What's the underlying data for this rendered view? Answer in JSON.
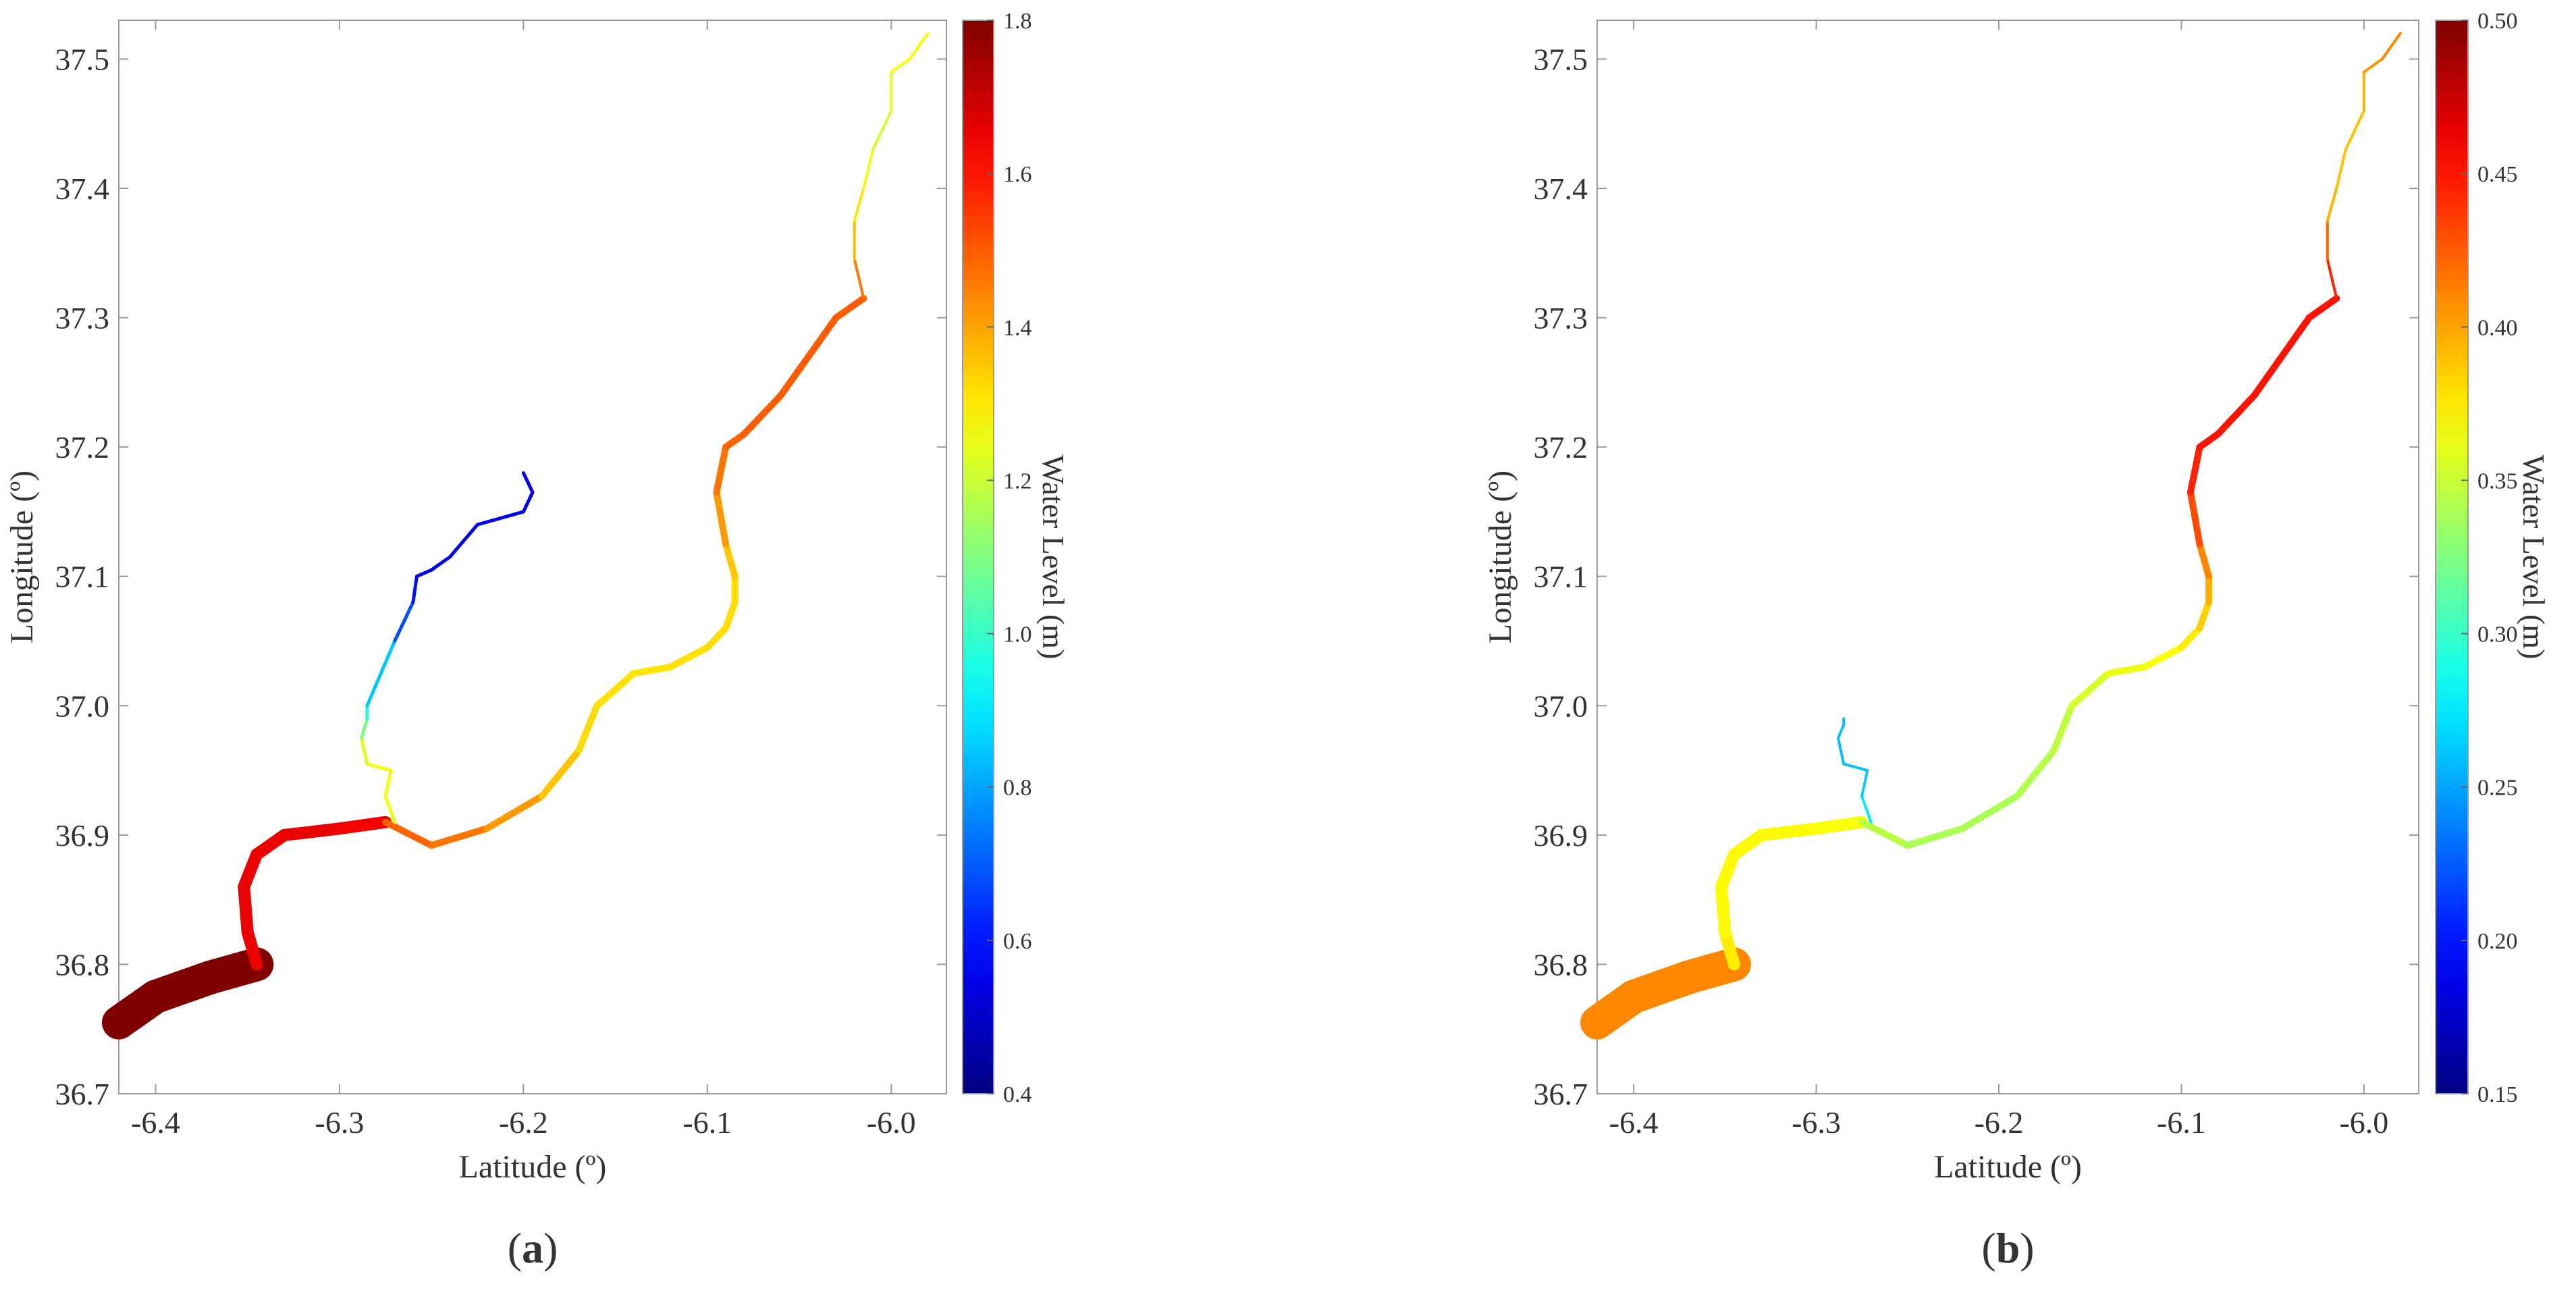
{
  "chart_data": [
    {
      "type": "map",
      "panel_label": "a",
      "xlabel": "Latitude (º)",
      "ylabel": "Longitude (º)",
      "xlim": [
        -6.42,
        -5.97
      ],
      "ylim": [
        36.7,
        37.53
      ],
      "x_ticks": [
        "-6.4",
        "-6.3",
        "-6.2",
        "-6.1",
        "-6.0"
      ],
      "y_ticks": [
        "36.7",
        "36.8",
        "36.9",
        "37.0",
        "37.1",
        "37.2",
        "37.3",
        "37.4",
        "37.5"
      ],
      "colorbar": {
        "label": "Water Level (m)",
        "range": [
          0.4,
          1.8
        ],
        "ticks": [
          "0.4",
          "0.6",
          "0.8",
          "1.0",
          "1.2",
          "1.4",
          "1.6",
          "1.8"
        ],
        "colormap": "jet"
      },
      "series": [
        {
          "x": [
            -6.42,
            -6.4,
            -6.37,
            -6.345
          ],
          "y": [
            36.755,
            36.775,
            36.79,
            36.8
          ],
          "values": [
            1.8,
            1.8,
            1.8,
            1.8
          ],
          "width": 50
        },
        {
          "x": [
            -6.345,
            -6.35,
            -6.352,
            -6.345,
            -6.33,
            -6.3,
            -6.275
          ],
          "y": [
            36.8,
            36.825,
            36.86,
            36.885,
            36.9,
            36.905,
            36.91
          ],
          "values": [
            1.65,
            1.65,
            1.65,
            1.65,
            1.65,
            1.65,
            1.62
          ],
          "width": 18
        },
        {
          "x": [
            -6.275,
            -6.25,
            -6.22,
            -6.19,
            -6.17,
            -6.16,
            -6.14,
            -6.12,
            -6.1,
            -6.09,
            -6.085,
            -6.085,
            -6.09,
            -6.095,
            -6.09,
            -6.08,
            -6.06,
            -6.04,
            -6.03,
            -6.015
          ],
          "y": [
            36.91,
            36.892,
            36.905,
            36.93,
            36.965,
            37.0,
            37.025,
            37.03,
            37.045,
            37.06,
            37.08,
            37.1,
            37.125,
            37.165,
            37.2,
            37.21,
            37.24,
            37.28,
            37.3,
            37.315
          ],
          "values": [
            1.5,
            1.48,
            1.45,
            1.38,
            1.33,
            1.32,
            1.31,
            1.31,
            1.32,
            1.32,
            1.32,
            1.32,
            1.38,
            1.45,
            1.48,
            1.49,
            1.5,
            1.5,
            1.5,
            1.5
          ],
          "width": 10
        },
        {
          "x": [
            -6.015,
            -6.02,
            -6.02,
            -6.015,
            -6.01,
            -6.0,
            -6.0,
            -5.99,
            -5.985,
            -5.98
          ],
          "y": [
            37.315,
            37.345,
            37.375,
            37.4,
            37.43,
            37.46,
            37.49,
            37.5,
            37.51,
            37.52
          ],
          "values": [
            1.5,
            1.42,
            1.32,
            1.3,
            1.2,
            1.22,
            1.25,
            1.28,
            1.28,
            1.28
          ],
          "width": 4
        },
        {
          "x": [
            -6.27,
            -6.275,
            -6.272,
            -6.285,
            -6.288,
            -6.285,
            -6.285,
            -6.27,
            -6.26,
            -6.258,
            -6.25,
            -6.24,
            -6.225,
            -6.2,
            -6.195,
            -6.2
          ],
          "y": [
            36.91,
            36.93,
            36.95,
            36.955,
            36.975,
            36.99,
            37.0,
            37.05,
            37.08,
            37.1,
            37.105,
            37.115,
            37.14,
            37.15,
            37.165,
            37.18
          ],
          "values": [
            1.26,
            1.26,
            1.26,
            1.26,
            1.2,
            1.0,
            0.95,
            0.75,
            0.62,
            0.58,
            0.55,
            0.55,
            0.55,
            0.55,
            0.55,
            0.55
          ],
          "width": 5
        }
      ]
    },
    {
      "type": "map",
      "panel_label": "b",
      "xlabel": "Latitude (º)",
      "ylabel": "Longitude (º)",
      "xlim": [
        -6.42,
        -5.97
      ],
      "ylim": [
        36.7,
        37.53
      ],
      "x_ticks": [
        "-6.4",
        "-6.3",
        "-6.2",
        "-6.1",
        "-6.0"
      ],
      "y_ticks": [
        "36.7",
        "36.8",
        "36.9",
        "37.0",
        "37.1",
        "37.2",
        "37.3",
        "37.4",
        "37.5"
      ],
      "colorbar": {
        "label": "Water Level (m)",
        "range": [
          0.15,
          0.5
        ],
        "ticks": [
          "0.15",
          "0.20",
          "0.25",
          "0.30",
          "0.35",
          "0.40",
          "0.45",
          "0.50"
        ],
        "colormap": "jet"
      },
      "series": [
        {
          "x": [
            -6.42,
            -6.4,
            -6.37,
            -6.345
          ],
          "y": [
            36.755,
            36.775,
            36.79,
            36.8
          ],
          "values": [
            0.41,
            0.41,
            0.41,
            0.41
          ],
          "width": 50
        },
        {
          "x": [
            -6.345,
            -6.35,
            -6.352,
            -6.345,
            -6.33,
            -6.3,
            -6.275
          ],
          "y": [
            36.8,
            36.825,
            36.86,
            36.885,
            36.9,
            36.905,
            36.91
          ],
          "values": [
            0.38,
            0.37,
            0.37,
            0.37,
            0.37,
            0.37,
            0.365
          ],
          "width": 18
        },
        {
          "x": [
            -6.275,
            -6.25,
            -6.22,
            -6.19,
            -6.17,
            -6.16,
            -6.14,
            -6.12,
            -6.1,
            -6.09,
            -6.085,
            -6.085,
            -6.09,
            -6.095,
            -6.09,
            -6.08,
            -6.06,
            -6.04,
            -6.03,
            -6.015
          ],
          "y": [
            36.91,
            36.892,
            36.905,
            36.93,
            36.965,
            37.0,
            37.025,
            37.03,
            37.045,
            37.06,
            37.08,
            37.1,
            37.125,
            37.165,
            37.2,
            37.21,
            37.24,
            37.28,
            37.3,
            37.315
          ],
          "values": [
            0.35,
            0.34,
            0.34,
            0.34,
            0.345,
            0.35,
            0.36,
            0.365,
            0.37,
            0.38,
            0.39,
            0.4,
            0.42,
            0.44,
            0.45,
            0.45,
            0.45,
            0.45,
            0.45,
            0.45
          ],
          "width": 10
        },
        {
          "x": [
            -6.015,
            -6.02,
            -6.02,
            -6.015,
            -6.01,
            -6.0,
            -6.0,
            -5.99,
            -5.985,
            -5.98
          ],
          "y": [
            37.315,
            37.345,
            37.375,
            37.4,
            37.43,
            37.46,
            37.49,
            37.5,
            37.51,
            37.52
          ],
          "values": [
            0.45,
            0.44,
            0.4,
            0.39,
            0.39,
            0.39,
            0.4,
            0.41,
            0.41,
            0.41
          ],
          "width": 4
        },
        {
          "x": [
            -6.27,
            -6.275,
            -6.272,
            -6.285,
            -6.288,
            -6.285,
            -6.285
          ],
          "y": [
            36.91,
            36.93,
            36.95,
            36.955,
            36.975,
            36.985,
            36.99
          ],
          "values": [
            0.28,
            0.27,
            0.26,
            0.26,
            0.26,
            0.26,
            0.26
          ],
          "width": 4
        }
      ]
    }
  ]
}
